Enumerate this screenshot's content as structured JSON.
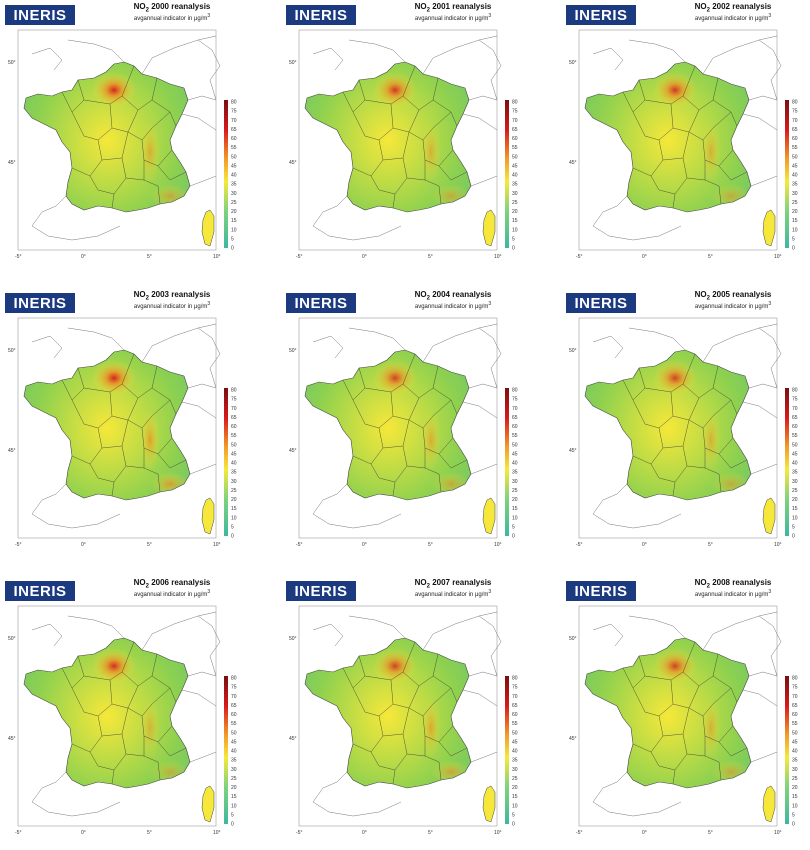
{
  "logo_text": "INERIS",
  "pollutant": "NO",
  "pollutant_sub": "2",
  "subtitle_prefix": "avgannual indicator in µg/m",
  "subtitle_sup": "3",
  "panels": [
    {
      "year": "2000",
      "title_suffix": "2000 reanalysis"
    },
    {
      "year": "2001",
      "title_suffix": "2001 reanalysis"
    },
    {
      "year": "2002",
      "title_suffix": "2002 reanalysis"
    },
    {
      "year": "2003",
      "title_suffix": "2003 reanalysis"
    },
    {
      "year": "2004",
      "title_suffix": "2004 reanalysis"
    },
    {
      "year": "2005",
      "title_suffix": "2005 reanalysis"
    },
    {
      "year": "2006",
      "title_suffix": "2006 reanalysis"
    },
    {
      "year": "2007",
      "title_suffix": "2007 reanalysis"
    },
    {
      "year": "2008",
      "title_suffix": "2008 reanalysis"
    }
  ],
  "colorbar_ticks": [
    "80",
    "75",
    "70",
    "65",
    "60",
    "55",
    "50",
    "45",
    "40",
    "35",
    "30",
    "25",
    "20",
    "15",
    "10",
    "5",
    "0"
  ],
  "lon_ticks": [
    "-5°",
    "0°",
    "5°",
    "10°"
  ],
  "lat_ticks": [
    "50°",
    "45°"
  ],
  "colors": {
    "logo_bg": "#1b3a80",
    "low": "#3cb8a0",
    "mid": "#8fd14f",
    "high": "#f6e83a",
    "peak": "#d7191c"
  },
  "hotspot_level_paris": [
    0.95,
    0.85,
    0.85,
    0.95,
    0.8,
    0.8,
    0.9,
    0.8,
    0.8
  ],
  "hotspot_level_southeast": [
    0.6,
    0.55,
    0.55,
    0.75,
    0.6,
    0.55,
    0.5,
    0.65,
    0.55
  ]
}
